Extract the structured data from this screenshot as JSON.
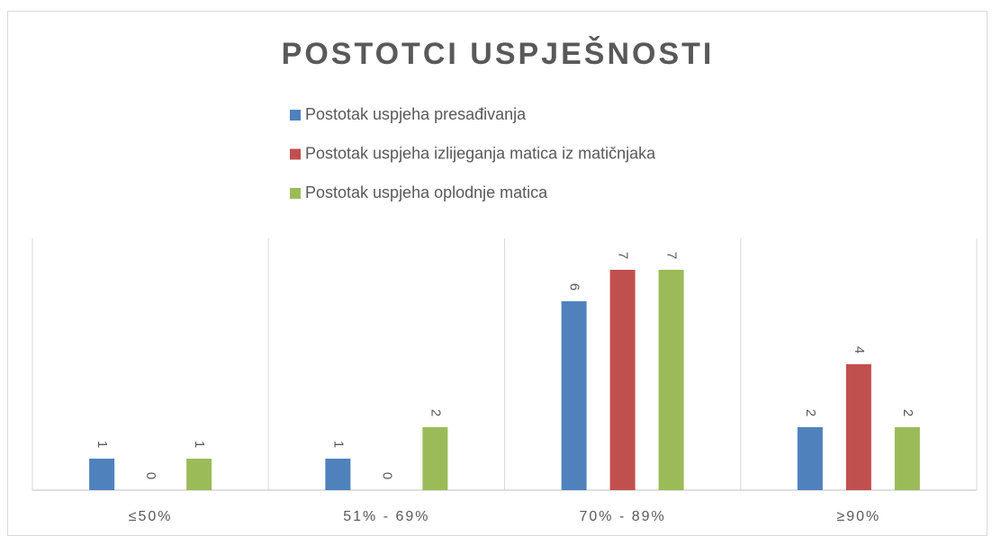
{
  "chart_data": {
    "type": "bar",
    "title": "POSTOTCI USPJEŠNOSTI",
    "categories": [
      "≤50%",
      "51% - 69%",
      "70% - 89%",
      "≥90%"
    ],
    "series": [
      {
        "name": "Postotak uspjeha presađivanja",
        "color": "#4f81bd",
        "values": [
          1,
          1,
          6,
          2
        ]
      },
      {
        "name": "Postotak uspjeha izlijeganja matica iz matičnjaka",
        "color": "#c0504d",
        "values": [
          0,
          0,
          7,
          4
        ]
      },
      {
        "name": "Postotak uspjeha oplodnje matica",
        "color": "#9bbb59",
        "values": [
          1,
          2,
          7,
          2
        ]
      }
    ],
    "ylim": [
      0,
      8
    ],
    "legend": "top"
  }
}
